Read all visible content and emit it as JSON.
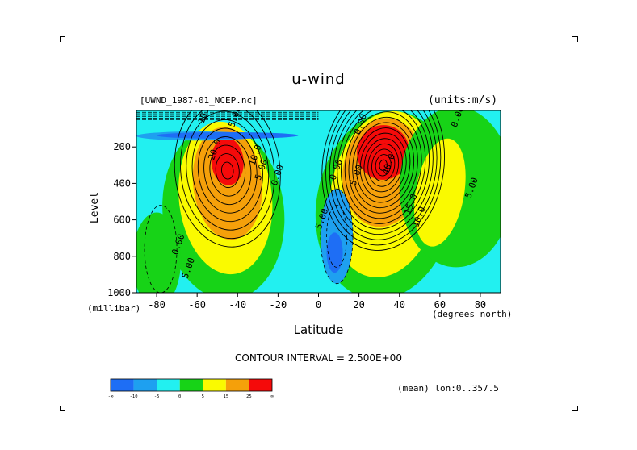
{
  "chart_data": {
    "type": "heatmap",
    "subtype": "filled-contour",
    "title": "u-wind",
    "file_label": "[UWND_1987-01_NCEP.nc]",
    "units_label": "(units:m/s)",
    "xlabel": "Latitude",
    "x_unit": "(degrees_north)",
    "ylabel": "Level",
    "y_unit": "(millibar)",
    "xlim": [
      -90,
      90
    ],
    "ylim": [
      1000,
      0
    ],
    "x_ticks": [
      -80,
      -60,
      -40,
      -20,
      0,
      20,
      40,
      60,
      80
    ],
    "y_ticks": [
      200,
      400,
      600,
      800,
      1000
    ],
    "contour_interval_text": "CONTOUR INTERVAL = 2.500E+00",
    "mean_text": "(mean) lon:0..357.5",
    "colorbar": {
      "colors": [
        "#1e6ef5",
        "#1ea0f0",
        "#22f0f0",
        "#17d317",
        "#fafa00",
        "#f5a00a",
        "#f50a0a"
      ],
      "labels": [
        "-∞",
        "-10",
        "-5",
        "0",
        "5",
        "15",
        "25",
        "∞"
      ]
    },
    "features": [
      {
        "type": "max",
        "lat": -45,
        "level": 250,
        "value": 22.5
      },
      {
        "type": "max",
        "lat": 30,
        "level": 200,
        "value": 42.5
      },
      {
        "type": "min",
        "lat": 10,
        "level": 700,
        "value": -10.0
      },
      {
        "type": "min",
        "lat": -60,
        "level": 50,
        "value": -10.0
      }
    ],
    "contour_labels": [
      {
        "text": "20.0",
        "lat": -50,
        "level": 220
      },
      {
        "text": "10.0",
        "lat": -30,
        "level": 250
      },
      {
        "text": "5.00",
        "lat": -27,
        "level": 330
      },
      {
        "text": "0.00",
        "lat": -19,
        "level": 360
      },
      {
        "text": "0.00",
        "lat": -68,
        "level": 740
      },
      {
        "text": "5.00",
        "lat": -63,
        "level": 870
      },
      {
        "text": "10.0",
        "lat": -55,
        "level": 20
      },
      {
        "text": "5.00",
        "lat": -40,
        "level": 40
      },
      {
        "text": "5.00",
        "lat": 3,
        "level": 600
      },
      {
        "text": "0.00",
        "lat": 10,
        "level": 330
      },
      {
        "text": "5.00",
        "lat": 20,
        "level": 360
      },
      {
        "text": "40.0",
        "lat": 36,
        "level": 300
      },
      {
        "text": "15.0",
        "lat": 47,
        "level": 520
      },
      {
        "text": "10.0",
        "lat": 51,
        "level": 590
      },
      {
        "text": "5.00",
        "lat": 77,
        "level": 430
      },
      {
        "text": "0.00",
        "lat": 70,
        "level": 40
      },
      {
        "text": "0.00",
        "lat": 22,
        "level": 80
      }
    ]
  }
}
